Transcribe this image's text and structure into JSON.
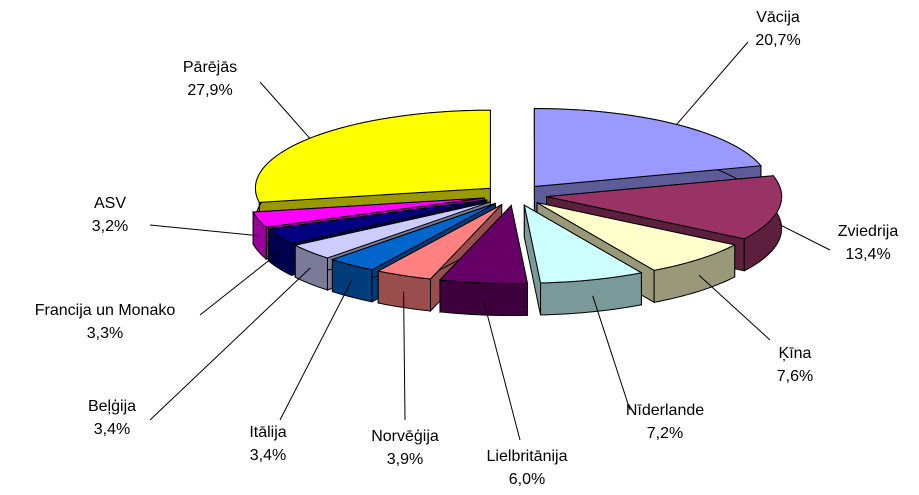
{
  "chart_data": {
    "type": "pie",
    "categories": [
      "Vācija",
      "Zviedrija",
      "Ķīna",
      "Nīderlande",
      "Lielbritānija",
      "Norvēģija",
      "Itālija",
      "Beļģija",
      "Francija un Monako",
      "ASV",
      "Pārējās"
    ],
    "values": [
      20.7,
      13.4,
      7.6,
      7.2,
      6.0,
      3.9,
      3.4,
      3.4,
      3.3,
      3.2,
      27.9
    ],
    "value_labels": [
      "20,7%",
      "13,4%",
      "7,6%",
      "7,2%",
      "6,0%",
      "3,9%",
      "3,4%",
      "3,4%",
      "3,3%",
      "3,2%",
      "27,9%"
    ],
    "colors": [
      "#9999ff",
      "#993366",
      "#ffffcc",
      "#ccffff",
      "#660066",
      "#ff8080",
      "#0066cc",
      "#ccccff",
      "#000080",
      "#ff00ff",
      "#ffff00"
    ]
  }
}
